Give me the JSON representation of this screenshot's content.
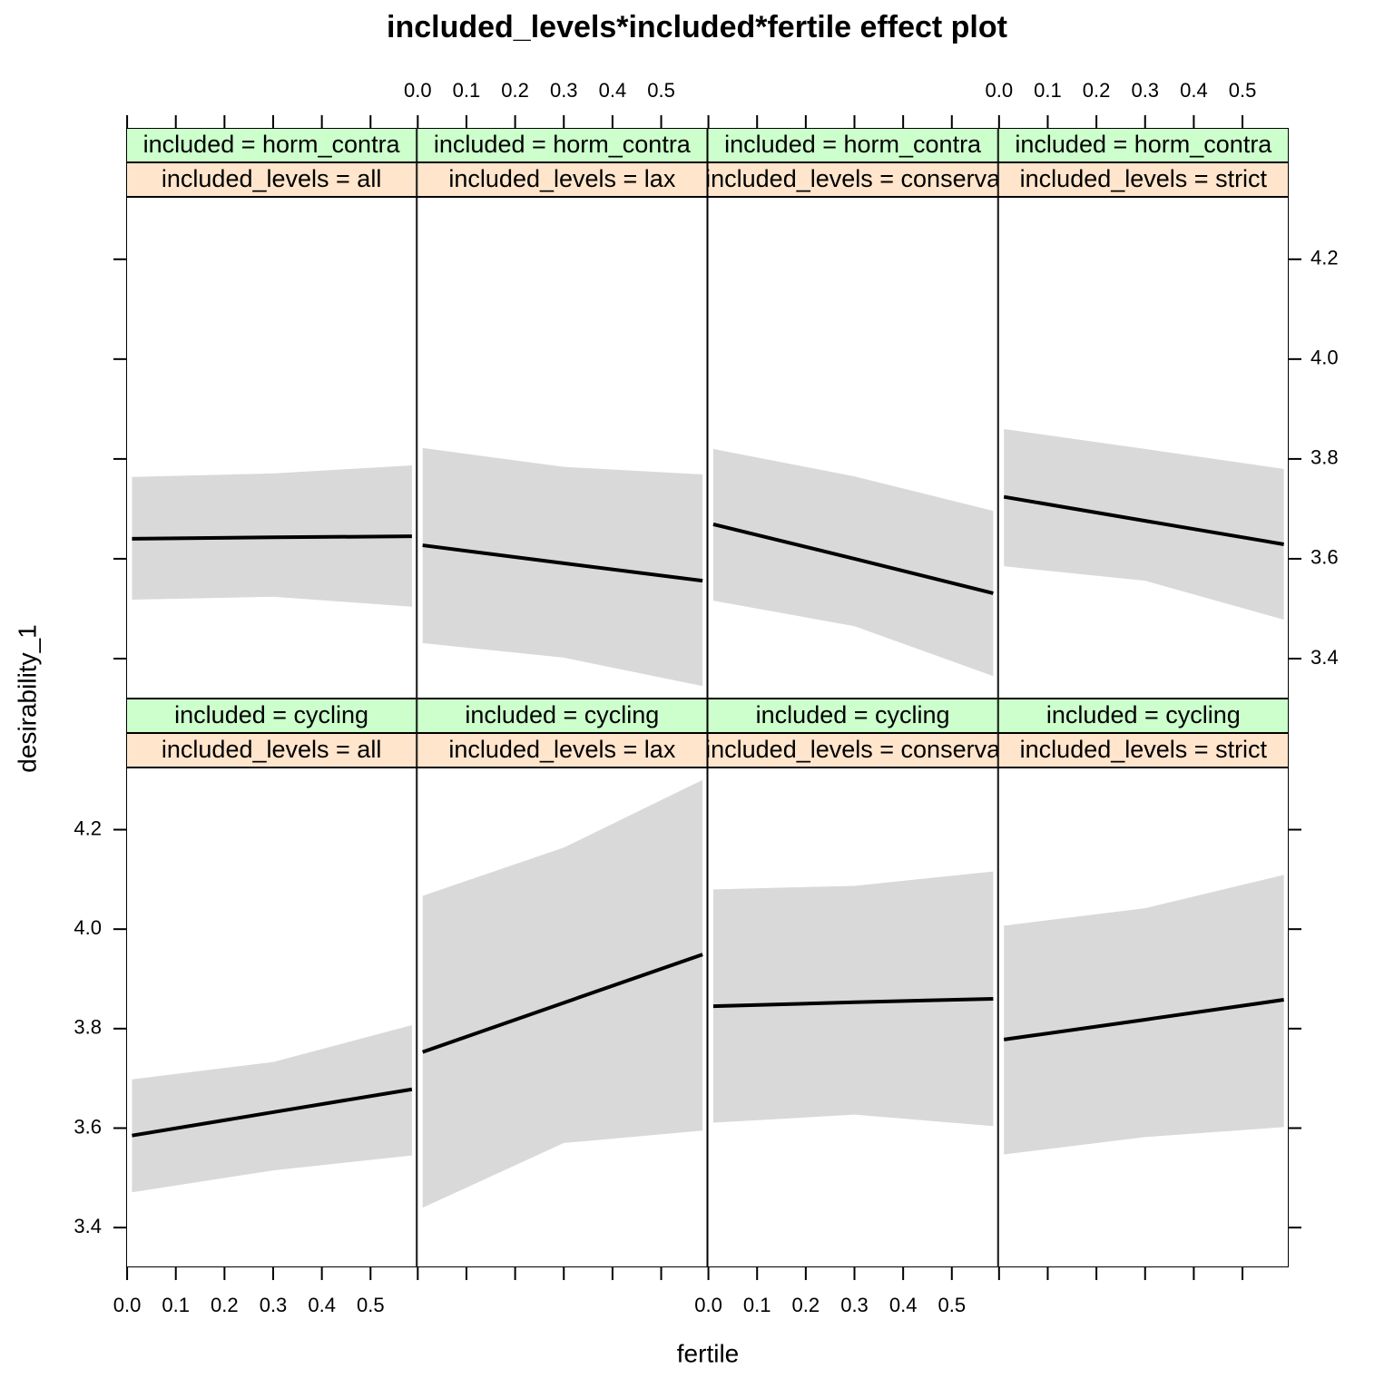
{
  "chart_data": {
    "type": "line",
    "title": "included_levels*included*fertile effect plot",
    "xlabel": "fertile",
    "ylabel": "desirability_1",
    "xlim": [
      -0.002,
      0.595
    ],
    "ylim": [
      3.32,
      4.325
    ],
    "xticks": [
      {
        "value": 0,
        "label": "0.0"
      },
      0.1,
      0.2,
      0.3,
      0.4,
      0.5
    ],
    "yticks": [
      3.4,
      3.6,
      3.8,
      {
        "value": 4,
        "label": "4.0"
      },
      4.2
    ],
    "line_color": "#000000",
    "band_color": "#d9d9d9",
    "strip_colors": [
      "#ccffcc",
      "#ffe5cc"
    ],
    "panels": [
      {
        "strips": [
          "included = horm_contra",
          "included_levels = all"
        ],
        "x": [
          0.01,
          0.3,
          0.585
        ],
        "fit": [
          3.64,
          3.643,
          3.645
        ],
        "lower": [
          3.518,
          3.524,
          3.504
        ],
        "upper": [
          3.764,
          3.771,
          3.787
        ]
      },
      {
        "strips": [
          "included = horm_contra",
          "included_levels = lax"
        ],
        "x": [
          0.01,
          0.3,
          0.585
        ],
        "fit": [
          3.627,
          3.591,
          3.556
        ],
        "lower": [
          3.431,
          3.402,
          3.345
        ],
        "upper": [
          3.822,
          3.784,
          3.769
        ]
      },
      {
        "strips": [
          "included = horm_contra",
          "included_levels = conserva"
        ],
        "x": [
          0.01,
          0.3,
          0.585
        ],
        "fit": [
          3.669,
          3.6,
          3.531
        ],
        "lower": [
          3.516,
          3.465,
          3.365
        ],
        "upper": [
          3.82,
          3.765,
          3.696
        ]
      },
      {
        "strips": [
          "included = horm_contra",
          "included_levels = strict"
        ],
        "x": [
          0.01,
          0.3,
          0.585
        ],
        "fit": [
          3.724,
          3.676,
          3.629
        ],
        "lower": [
          3.585,
          3.556,
          3.478
        ],
        "upper": [
          3.86,
          3.82,
          3.78
        ]
      },
      {
        "strips": [
          "included = cycling",
          "included_levels = all"
        ],
        "x": [
          0.01,
          0.3,
          0.585
        ],
        "fit": [
          3.585,
          3.632,
          3.678
        ],
        "lower": [
          3.471,
          3.515,
          3.545
        ],
        "upper": [
          3.698,
          3.733,
          3.807
        ]
      },
      {
        "strips": [
          "included = cycling",
          "included_levels = lax"
        ],
        "x": [
          0.01,
          0.3,
          0.585
        ],
        "fit": [
          3.753,
          3.852,
          3.949
        ],
        "lower": [
          3.44,
          3.57,
          3.595
        ],
        "upper": [
          4.067,
          4.164,
          4.3
        ]
      },
      {
        "strips": [
          "included = cycling",
          "included_levels = conserva"
        ],
        "x": [
          0.01,
          0.3,
          0.585
        ],
        "fit": [
          3.845,
          3.853,
          3.86
        ],
        "lower": [
          3.611,
          3.627,
          3.604
        ],
        "upper": [
          4.08,
          4.087,
          4.116
        ]
      },
      {
        "strips": [
          "included = cycling",
          "included_levels = strict"
        ],
        "x": [
          0.01,
          0.3,
          0.585
        ],
        "fit": [
          3.778,
          3.818,
          3.858
        ],
        "lower": [
          3.547,
          3.582,
          3.602
        ],
        "upper": [
          4.007,
          4.042,
          4.109
        ]
      }
    ]
  }
}
